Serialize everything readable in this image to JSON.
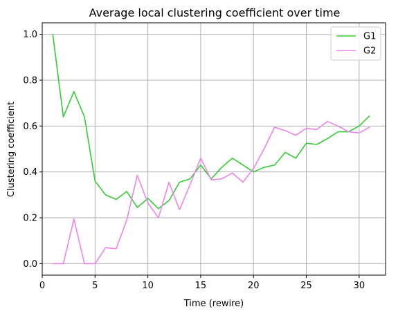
{
  "chart_data": {
    "type": "line",
    "title": "Average local clustering coefficient over time",
    "xlabel": "Time (rewire)",
    "ylabel": "Clustering coefficient",
    "xlim": [
      0,
      32.5
    ],
    "ylim": [
      -0.05,
      1.05
    ],
    "xticks": [
      0,
      5,
      10,
      15,
      20,
      25,
      30
    ],
    "yticks": [
      0.0,
      0.2,
      0.4,
      0.6,
      0.8,
      1.0
    ],
    "grid": true,
    "legend_position": "top-right",
    "x": [
      1,
      2,
      3,
      4,
      5,
      6,
      7,
      8,
      9,
      10,
      11,
      12,
      13,
      14,
      15,
      16,
      17,
      18,
      19,
      20,
      21,
      22,
      23,
      24,
      25,
      26,
      27,
      28,
      29,
      30,
      31
    ],
    "series": [
      {
        "name": "G1",
        "color": "#32cd32",
        "values": [
          1.0,
          0.64,
          0.75,
          0.64,
          0.36,
          0.3,
          0.28,
          0.315,
          0.245,
          0.285,
          0.24,
          0.275,
          0.355,
          0.37,
          0.43,
          0.37,
          0.42,
          0.46,
          0.43,
          0.4,
          0.42,
          0.43,
          0.485,
          0.46,
          0.525,
          0.52,
          0.545,
          0.575,
          0.575,
          0.6,
          0.645
        ]
      },
      {
        "name": "G2",
        "color": "#ee82ee",
        "values": [
          0.0,
          0.0,
          0.195,
          0.0,
          0.0,
          0.07,
          0.065,
          0.19,
          0.385,
          0.265,
          0.2,
          0.355,
          0.235,
          0.345,
          0.46,
          0.365,
          0.37,
          0.395,
          0.355,
          0.415,
          0.5,
          0.595,
          0.58,
          0.56,
          0.59,
          0.585,
          0.62,
          0.6,
          0.575,
          0.57,
          0.595
        ]
      }
    ]
  }
}
